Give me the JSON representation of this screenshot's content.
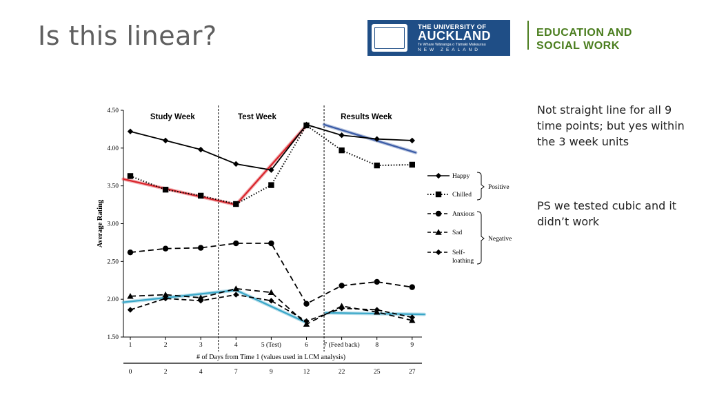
{
  "slide": {
    "title": "Is this linear?",
    "note1": "Not straight line for all 9 time points; but yes within the 3 week units",
    "note2": "PS we tested cubic and it didn’t work"
  },
  "logo": {
    "line1": "THE UNIVERSITY OF",
    "line2": "AUCKLAND",
    "line3": "Te Whare Wānanga o Tāmaki Makaurau",
    "line4": "NEW ZEALAND"
  },
  "faculty": {
    "line1": "EDUCATION AND",
    "line2": "SOCIAL WORK"
  },
  "colors": {
    "title": "#5f5f5f",
    "logo_bg": "#1f4e86",
    "faculty": "#4a7d1e",
    "fit_red": "#d9232a",
    "fit_blue": "#3a5ba6",
    "fit_cyan": "#3aa7c8"
  },
  "chart_data": {
    "type": "line",
    "ylabel": "Average Rating",
    "xlabel": "# of Days from Time 1 (values used in LCM analysis)",
    "ylim": [
      1.5,
      4.5
    ],
    "yticks": [
      "1.50",
      "2.00",
      "2.50",
      "3.00",
      "3.50",
      "4.00",
      "4.50"
    ],
    "x": [
      1,
      2,
      3,
      4,
      5,
      6,
      7,
      8,
      9
    ],
    "xtick_labels": [
      "1",
      "2",
      "3",
      "4",
      "5 (Test)",
      "6",
      "7 (Feed back)",
      "8",
      "9"
    ],
    "xtick_days": [
      "0",
      "2",
      "4",
      "7",
      "9",
      "12",
      "22",
      "25",
      "27"
    ],
    "phase_dividers": [
      3.5,
      6.5
    ],
    "phases": [
      {
        "label": "Study Week",
        "center": 2.2
      },
      {
        "label": "Test Week",
        "center": 4.6
      },
      {
        "label": "Results Week",
        "center": 7.7
      }
    ],
    "series": [
      {
        "name": "Happy",
        "style": "solid",
        "marker": "diamond",
        "values": [
          4.22,
          4.1,
          3.98,
          3.79,
          3.71,
          4.31,
          4.17,
          4.12,
          4.1
        ]
      },
      {
        "name": "Chilled",
        "style": "dotted",
        "marker": "square",
        "values": [
          3.63,
          3.45,
          3.37,
          3.26,
          3.51,
          4.3,
          3.97,
          3.77,
          3.78
        ]
      },
      {
        "name": "Anxious",
        "style": "dashed",
        "marker": "circle",
        "values": [
          2.62,
          2.67,
          2.68,
          2.74,
          2.74,
          1.94,
          2.18,
          2.23,
          2.16
        ]
      },
      {
        "name": "Sad",
        "style": "dashed",
        "marker": "triangle",
        "values": [
          2.04,
          2.06,
          2.02,
          2.14,
          2.09,
          1.67,
          1.91,
          1.83,
          1.72
        ]
      },
      {
        "name": "Self-loathing",
        "style": "dashdot",
        "marker": "diamond",
        "values": [
          1.86,
          2.01,
          1.98,
          2.06,
          1.98,
          1.71,
          1.88,
          1.86,
          1.76
        ]
      }
    ],
    "fit_lines": [
      {
        "color": "red",
        "x": [
          0.8,
          4.0
        ],
        "y": [
          3.59,
          3.25
        ]
      },
      {
        "color": "red",
        "x": [
          4.0,
          6.0
        ],
        "y": [
          3.25,
          4.3
        ]
      },
      {
        "color": "blue",
        "x": [
          6.5,
          9.1
        ],
        "y": [
          4.31,
          3.94
        ]
      },
      {
        "color": "cyan",
        "x": [
          0.8,
          4.0
        ],
        "y": [
          1.96,
          2.12
        ]
      },
      {
        "color": "cyan",
        "x": [
          4.0,
          6.0
        ],
        "y": [
          2.12,
          1.69
        ]
      },
      {
        "color": "cyan",
        "x": [
          6.55,
          9.35
        ],
        "y": [
          1.82,
          1.8
        ]
      }
    ],
    "legend": {
      "placement": "right",
      "groups": [
        {
          "label": "Positive",
          "members": [
            "Happy",
            "Chilled"
          ]
        },
        {
          "label": "Negative",
          "members": [
            "Anxious",
            "Sad",
            "Self-loathing"
          ]
        }
      ]
    }
  }
}
